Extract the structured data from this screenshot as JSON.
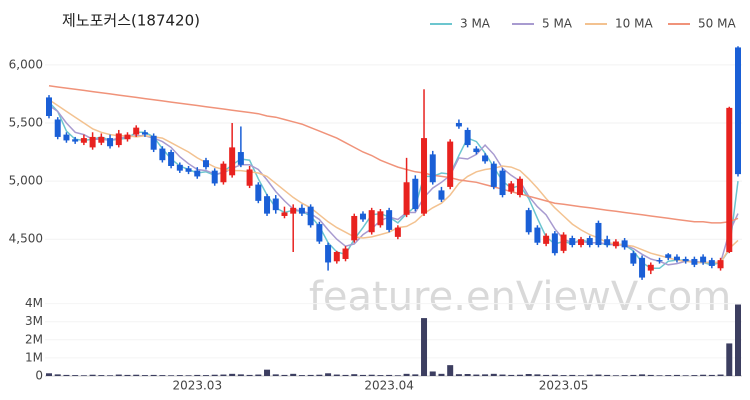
{
  "chart_data": {
    "type": "candlestick",
    "title": "제노포커스(187420)",
    "watermark": "feature.enViewV.com",
    "categories": [
      null,
      null,
      null,
      null,
      null,
      null,
      null,
      null,
      null,
      null,
      null,
      null,
      null,
      null,
      null,
      null,
      null,
      "2023.03",
      null,
      null,
      null,
      null,
      null,
      null,
      null,
      null,
      null,
      null,
      null,
      null,
      null,
      null,
      null,
      null,
      null,
      null,
      null,
      null,
      null,
      "2023.04",
      null,
      null,
      null,
      null,
      null,
      null,
      null,
      null,
      null,
      null,
      null,
      null,
      null,
      null,
      null,
      null,
      null,
      null,
      null,
      "2023.05",
      null,
      null,
      null,
      null,
      null,
      null,
      null,
      null,
      null,
      null,
      null,
      null,
      null,
      null,
      null,
      null,
      null,
      null,
      null,
      null
    ],
    "open": [
      5720,
      5530,
      5400,
      5360,
      5330,
      5290,
      5330,
      5370,
      5310,
      5360,
      5400,
      5420,
      5390,
      5280,
      5250,
      5140,
      5110,
      5090,
      5180,
      5090,
      4990,
      5050,
      5250,
      4960,
      4970,
      4870,
      4850,
      4700,
      4720,
      4770,
      4780,
      4630,
      4450,
      4310,
      4330,
      4490,
      4720,
      4560,
      4620,
      4750,
      4520,
      4710,
      5020,
      4720,
      5230,
      4920,
      4950,
      5500,
      5440,
      5280,
      5220,
      5150,
      5090,
      4910,
      4880,
      4750,
      4600,
      4460,
      4550,
      4400,
      4510,
      4450,
      4510,
      4640,
      4500,
      4440,
      4490,
      4380,
      4340,
      4230,
      4320,
      4370,
      4350,
      4330,
      4330,
      4350,
      4320,
      4250,
      4390,
      6150
    ],
    "high": [
      5740,
      5550,
      5420,
      5380,
      5400,
      5420,
      5410,
      5400,
      5440,
      5420,
      5480,
      5440,
      5410,
      5300,
      5270,
      5160,
      5130,
      5120,
      5200,
      5110,
      5170,
      5500,
      5470,
      5130,
      4990,
      4890,
      4880,
      4780,
      4800,
      4800,
      4800,
      4650,
      4470,
      4400,
      4440,
      4720,
      4740,
      4770,
      4760,
      4770,
      4620,
      5200,
      5050,
      5790,
      5260,
      4950,
      5360,
      5530,
      5460,
      5300,
      5240,
      5170,
      5110,
      5000,
      5040,
      4770,
      4620,
      4550,
      4570,
      4560,
      4530,
      4520,
      4530,
      4660,
      4530,
      4500,
      4510,
      4400,
      4360,
      4300,
      4340,
      4380,
      4370,
      4350,
      4350,
      4370,
      4340,
      4340,
      5640,
      6160
    ],
    "low": [
      5540,
      5360,
      5330,
      5320,
      5310,
      5270,
      5310,
      5280,
      5290,
      5340,
      5380,
      5380,
      5250,
      5160,
      5110,
      5070,
      5060,
      5020,
      5100,
      4960,
      4970,
      5030,
      5120,
      4940,
      4810,
      4700,
      4720,
      4680,
      4390,
      4700,
      4600,
      4460,
      4230,
      4290,
      4310,
      4470,
      4650,
      4540,
      4600,
      4560,
      4500,
      4690,
      4740,
      4700,
      4970,
      4820,
      4930,
      5450,
      5290,
      5230,
      5150,
      4930,
      4860,
      4890,
      4860,
      4540,
      4450,
      4440,
      4360,
      4380,
      4430,
      4430,
      4430,
      4430,
      4430,
      4420,
      4410,
      4270,
      4150,
      4200,
      4290,
      4320,
      4300,
      4290,
      4260,
      4280,
      4250,
      4230,
      4380,
      5040
    ],
    "close": [
      5560,
      5380,
      5350,
      5340,
      5370,
      5380,
      5380,
      5300,
      5410,
      5400,
      5460,
      5400,
      5270,
      5180,
      5130,
      5090,
      5080,
      5040,
      5120,
      4980,
      5150,
      5290,
      5140,
      5100,
      4830,
      4720,
      4750,
      4730,
      4770,
      4720,
      4620,
      4480,
      4300,
      4390,
      4420,
      4700,
      4670,
      4750,
      4740,
      4580,
      4600,
      4990,
      4760,
      5370,
      4990,
      4840,
      5340,
      5470,
      5310,
      5250,
      5170,
      4950,
      4880,
      4980,
      5020,
      4560,
      4470,
      4530,
      4380,
      4540,
      4450,
      4500,
      4450,
      4450,
      4450,
      4480,
      4430,
      4290,
      4170,
      4280,
      4310,
      4340,
      4320,
      4310,
      4280,
      4300,
      4270,
      4320,
      5630,
      5060
    ],
    "up_color": "#e8221f",
    "down_color": "#1a5fd6",
    "series": [
      {
        "name": "3 MA",
        "color": "#6cc6cf",
        "values": [
          5680,
          5600,
          5430,
          5360,
          5350,
          5360,
          5380,
          5350,
          5360,
          5370,
          5420,
          5420,
          5380,
          5280,
          5190,
          5130,
          5100,
          5070,
          5080,
          5050,
          5080,
          5140,
          5190,
          5180,
          5020,
          4880,
          4770,
          4730,
          4750,
          4740,
          4700,
          4610,
          4470,
          4390,
          4370,
          4500,
          4600,
          4710,
          4720,
          4690,
          4640,
          4720,
          4780,
          5040,
          5040,
          5070,
          5060,
          5220,
          5370,
          5340,
          5240,
          5120,
          5000,
          4940,
          4960,
          4850,
          4680,
          4520,
          4460,
          4480,
          4460,
          4500,
          4470,
          4470,
          4450,
          4460,
          4450,
          4400,
          4300,
          4250,
          4250,
          4310,
          4320,
          4320,
          4300,
          4300,
          4280,
          4300,
          4410,
          5000
        ]
      },
      {
        "name": "5 MA",
        "color": "#a89bd0",
        "values": [
          5650,
          5600,
          5500,
          5420,
          5400,
          5360,
          5360,
          5350,
          5370,
          5380,
          5390,
          5390,
          5370,
          5340,
          5290,
          5210,
          5150,
          5100,
          5090,
          5060,
          5070,
          5110,
          5140,
          5140,
          5100,
          5010,
          4910,
          4830,
          4760,
          4740,
          4720,
          4670,
          4580,
          4500,
          4440,
          4460,
          4540,
          4590,
          4660,
          4690,
          4670,
          4730,
          4730,
          4860,
          4940,
          4990,
          5050,
          5200,
          5190,
          5230,
          5310,
          5230,
          5110,
          5050,
          5000,
          4870,
          4780,
          4710,
          4590,
          4500,
          4470,
          4480,
          4470,
          4470,
          4460,
          4450,
          4450,
          4420,
          4370,
          4330,
          4310,
          4280,
          4290,
          4310,
          4310,
          4300,
          4300,
          4300,
          4560,
          4720
        ]
      },
      {
        "name": "10 MA",
        "color": "#f3c290",
        "values": [
          5700,
          5650,
          5600,
          5550,
          5500,
          5450,
          5420,
          5400,
          5390,
          5390,
          5380,
          5390,
          5380,
          5370,
          5330,
          5290,
          5250,
          5200,
          5160,
          5120,
          5100,
          5090,
          5090,
          5080,
          5070,
          5040,
          4980,
          4920,
          4860,
          4810,
          4770,
          4710,
          4650,
          4600,
          4560,
          4520,
          4510,
          4520,
          4540,
          4560,
          4600,
          4610,
          4650,
          4720,
          4770,
          4810,
          4880,
          4980,
          5040,
          5080,
          5100,
          5110,
          5130,
          5120,
          5090,
          5020,
          4940,
          4850,
          4770,
          4700,
          4630,
          4580,
          4540,
          4510,
          4470,
          4460,
          4450,
          4440,
          4410,
          4380,
          4360,
          4340,
          4320,
          4310,
          4300,
          4300,
          4300,
          4300,
          4420,
          4490
        ]
      },
      {
        "name": "50 MA",
        "color": "#f0937a",
        "values": [
          5820,
          5810,
          5800,
          5790,
          5780,
          5770,
          5760,
          5750,
          5740,
          5730,
          5720,
          5710,
          5700,
          5690,
          5680,
          5670,
          5660,
          5650,
          5640,
          5630,
          5620,
          5610,
          5600,
          5590,
          5580,
          5560,
          5550,
          5530,
          5510,
          5490,
          5460,
          5430,
          5400,
          5370,
          5330,
          5290,
          5250,
          5220,
          5180,
          5150,
          5120,
          5100,
          5080,
          5070,
          5050,
          5040,
          5030,
          5010,
          5000,
          4990,
          4970,
          4950,
          4930,
          4910,
          4890,
          4870,
          4850,
          4830,
          4810,
          4800,
          4790,
          4780,
          4770,
          4760,
          4750,
          4740,
          4730,
          4720,
          4710,
          4700,
          4690,
          4680,
          4670,
          4660,
          4650,
          4650,
          4640,
          4640,
          4650,
          4680
        ]
      }
    ],
    "ylim": [
      4020,
      6300
    ],
    "yticks": [
      {
        "value": 4500,
        "label": "4,500"
      },
      {
        "value": 5000,
        "label": "5,000"
      },
      {
        "value": 5500,
        "label": "5,500"
      },
      {
        "value": 6000,
        "label": "6,000"
      }
    ],
    "volume": {
      "color": "#3c3e60",
      "values": [
        150000,
        90000,
        60000,
        50000,
        40000,
        70000,
        50000,
        40000,
        80000,
        60000,
        70000,
        50000,
        60000,
        50000,
        40000,
        50000,
        40000,
        60000,
        50000,
        70000,
        80000,
        120000,
        90000,
        60000,
        80000,
        350000,
        90000,
        60000,
        120000,
        50000,
        60000,
        70000,
        150000,
        80000,
        60000,
        100000,
        60000,
        70000,
        50000,
        60000,
        40000,
        120000,
        90000,
        3200000,
        250000,
        120000,
        600000,
        100000,
        110000,
        80000,
        90000,
        120000,
        80000,
        60000,
        70000,
        110000,
        90000,
        60000,
        70000,
        50000,
        60000,
        40000,
        70000,
        80000,
        60000,
        40000,
        50000,
        60000,
        90000,
        60000,
        40000,
        50000,
        60000,
        40000,
        50000,
        70000,
        60000,
        80000,
        1800000,
        3950000
      ],
      "ylim": [
        0,
        4200000
      ],
      "yticks": [
        0,
        {
          "value": 1000000,
          "label": "1M"
        },
        {
          "value": 2000000,
          "label": "2M"
        },
        {
          "value": 3000000,
          "label": "3M"
        },
        {
          "value": 4000000,
          "label": "4M"
        }
      ]
    }
  }
}
